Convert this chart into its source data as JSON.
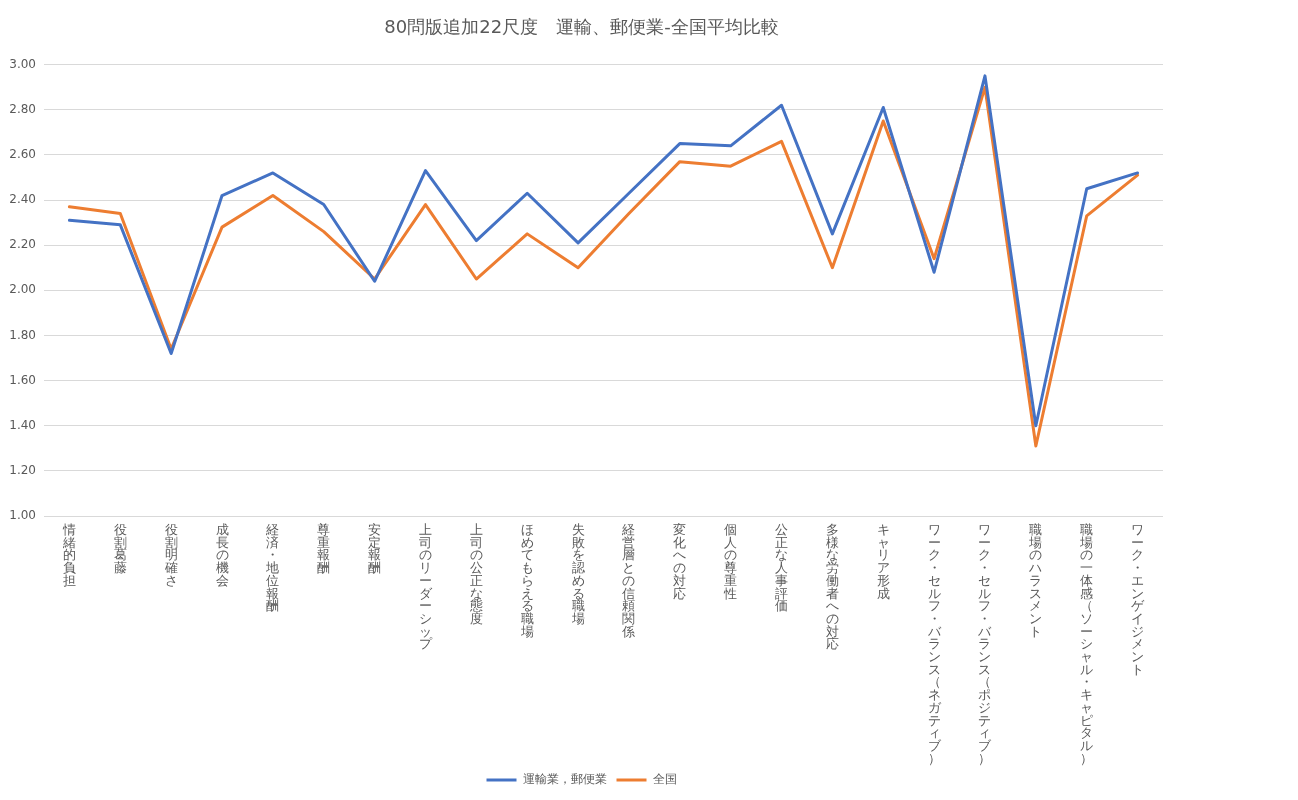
{
  "chart_data": {
    "type": "line",
    "title": "80問版追加22尺度　運輸、郵便業-全国平均比較",
    "categories": [
      "情緒的負担",
      "役割葛藤",
      "役割明確さ",
      "成長の機会",
      "経済・地位報酬",
      "尊重報酬",
      "安定報酬",
      "上司のリーダーシップ",
      "上司の公正な態度",
      "ほめてもらえる職場",
      "失敗を認める職場",
      "経営層との信頼関係",
      "変化への対応",
      "個人の尊重性",
      "公正な人事評価",
      "多様な労働者への対応",
      "キャリア形成",
      "ワーク・セルフ・バランス（ネガティブ）",
      "ワーク・セルフ・バランス（ポジティブ）",
      "職場のハラスメント",
      "職場の一体感（ソーシャル・キャピタル）",
      "ワーク・エンゲイジメント"
    ],
    "series": [
      {
        "name": "運輸業，郵便業",
        "color": "#4472c4",
        "values": [
          2.31,
          2.29,
          1.72,
          2.42,
          2.52,
          2.38,
          2.04,
          2.53,
          2.22,
          2.43,
          2.21,
          2.43,
          2.65,
          2.64,
          2.82,
          2.25,
          2.81,
          2.08,
          2.95,
          1.4,
          2.45,
          2.52
        ]
      },
      {
        "name": "全国",
        "color": "#ed7d31",
        "values": [
          2.37,
          2.34,
          1.74,
          2.28,
          2.42,
          2.26,
          2.05,
          2.38,
          2.05,
          2.25,
          2.1,
          2.34,
          2.57,
          2.55,
          2.66,
          2.1,
          2.75,
          2.14,
          2.9,
          1.31,
          2.33,
          2.51
        ]
      }
    ],
    "ylim": [
      1,
      3
    ],
    "yticks": [
      {
        "value": 1,
        "label": "1.00"
      },
      {
        "value": 1.2,
        "label": "1.20"
      },
      {
        "value": 1.4,
        "label": "1.40"
      },
      {
        "value": 1.6,
        "label": "1.60"
      },
      {
        "value": 1.8,
        "label": "1.80"
      },
      {
        "value": 2,
        "label": "2.00"
      },
      {
        "value": 2.2,
        "label": "2.20"
      },
      {
        "value": 2.4,
        "label": "2.40"
      },
      {
        "value": 2.6,
        "label": "2.60"
      },
      {
        "value": 2.8,
        "label": "2.80"
      },
      {
        "value": 3,
        "label": "3.00"
      }
    ],
    "grid": "y",
    "legend": "bottom"
  }
}
